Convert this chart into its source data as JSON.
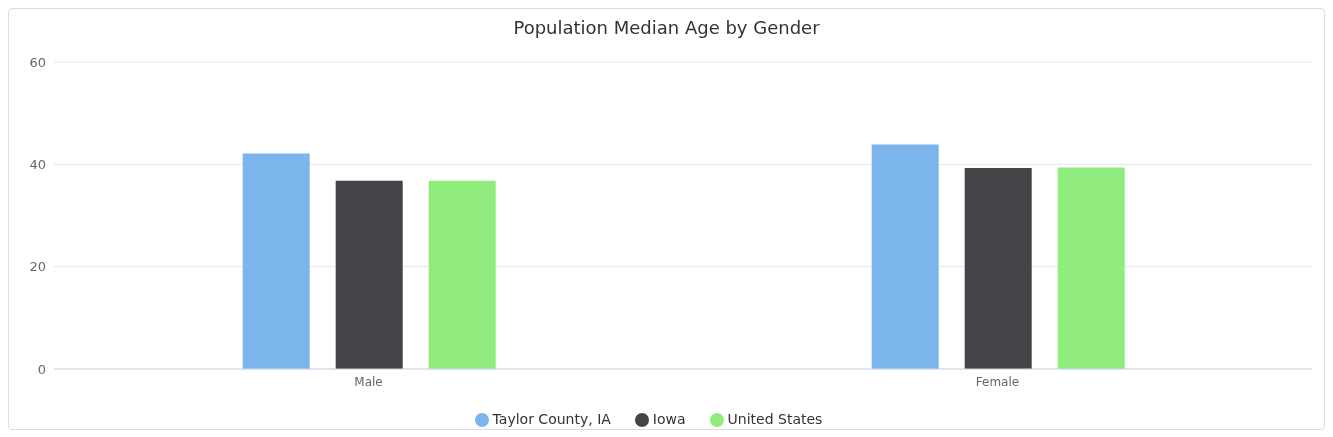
{
  "chart_data": {
    "type": "bar",
    "title": "Population Median Age by Gender",
    "categories": [
      "Male",
      "Female"
    ],
    "series": [
      {
        "name": "Taylor County, IA",
        "color": "#7cb5ec",
        "values": [
          42.1,
          43.9
        ]
      },
      {
        "name": "Iowa",
        "color": "#434348",
        "values": [
          36.8,
          39.3
        ]
      },
      {
        "name": "United States",
        "color": "#90ed7d",
        "values": [
          36.8,
          39.4
        ]
      }
    ],
    "ylim": [
      0,
      60
    ],
    "yticks": [
      0,
      20,
      40,
      60
    ],
    "grid": "y",
    "legend": "bottom"
  }
}
